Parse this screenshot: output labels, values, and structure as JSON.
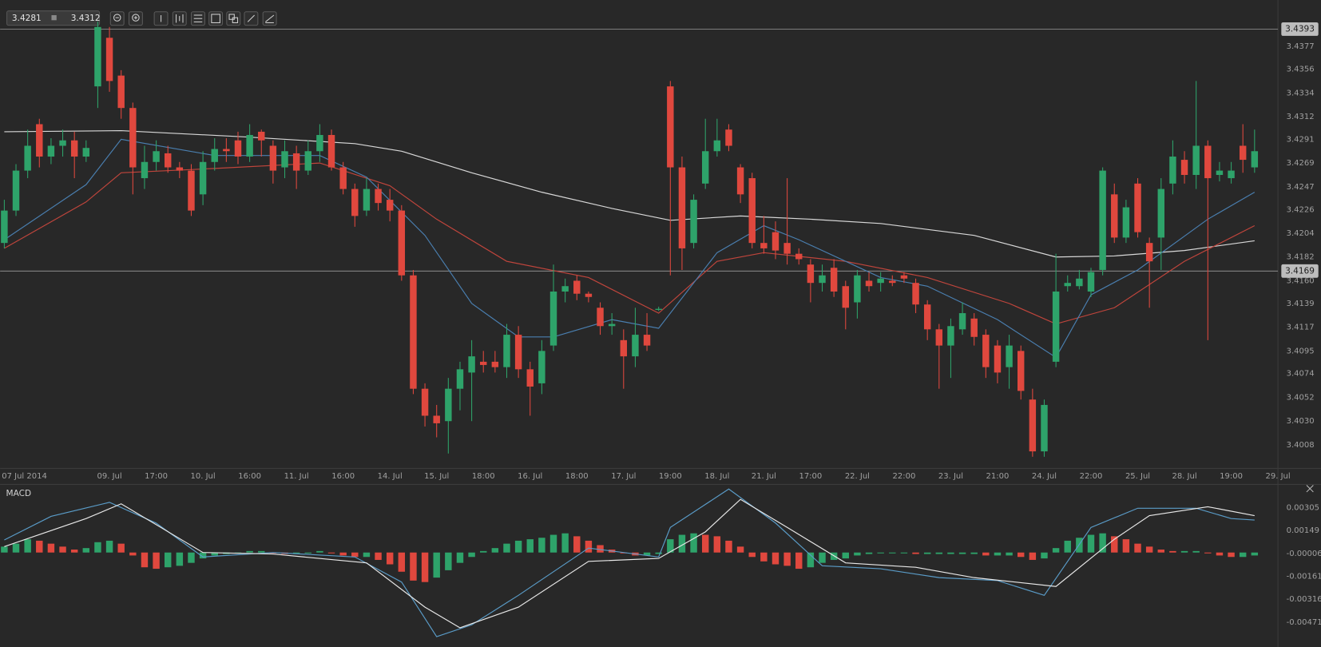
{
  "toolbar": {
    "bid": "3.4281",
    "ask": "3.4312"
  },
  "chart_data": [
    {
      "type": "candlestick",
      "xlim": [
        -0.36,
        109
      ],
      "xticks": [
        {
          "value": 0,
          "label": "07 Jul 2014"
        },
        {
          "value": 9,
          "label": "09. Jul"
        },
        {
          "value": 13,
          "label": "17:00"
        },
        {
          "value": 17,
          "label": "10. Jul"
        },
        {
          "value": 21,
          "label": "16:00"
        },
        {
          "value": 25,
          "label": "11. Jul"
        },
        {
          "value": 29,
          "label": "16:00"
        },
        {
          "value": 33,
          "label": "14. Jul"
        },
        {
          "value": 37,
          "label": "15. Jul"
        },
        {
          "value": 41,
          "label": "18:00"
        },
        {
          "value": 45,
          "label": "16. Jul"
        },
        {
          "value": 49,
          "label": "18:00"
        },
        {
          "value": 53,
          "label": "17. Jul"
        },
        {
          "value": 57,
          "label": "19:00"
        },
        {
          "value": 61,
          "label": "18. Jul"
        },
        {
          "value": 65,
          "label": "21. Jul"
        },
        {
          "value": 69,
          "label": "17:00"
        },
        {
          "value": 73,
          "label": "22. Jul"
        },
        {
          "value": 77,
          "label": "22:00"
        },
        {
          "value": 81,
          "label": "23. Jul"
        },
        {
          "value": 85,
          "label": "21:00"
        },
        {
          "value": 89,
          "label": "24. Jul"
        },
        {
          "value": 93,
          "label": "22:00"
        },
        {
          "value": 97,
          "label": "25. Jul"
        },
        {
          "value": 101,
          "label": "28. Jul"
        },
        {
          "value": 105,
          "label": "19:00"
        },
        {
          "value": 109,
          "label": "29. Jul"
        }
      ],
      "ylim": [
        3.3987,
        3.442
      ],
      "yticks": [
        3.4008,
        {
          "value": 3.403,
          "label": "3.4030"
        },
        3.4052,
        3.4074,
        3.4095,
        3.4117,
        3.4139,
        {
          "value": 3.416,
          "label": "3.4160"
        },
        3.4182,
        3.4204,
        3.4226,
        3.4247,
        3.4269,
        3.4291,
        3.4312,
        3.4334,
        3.4356,
        3.4377
      ],
      "price_lines": [
        3.4393,
        3.4169
      ],
      "up_color": "#2ea36a",
      "down_color": "#e0483e",
      "open": [
        3.4195,
        3.4225,
        3.4262,
        3.4305,
        3.4275,
        3.4285,
        3.429,
        3.4275,
        3.434,
        3.4385,
        3.435,
        3.432,
        3.4255,
        3.427,
        3.4278,
        3.4265,
        3.4262,
        3.424,
        3.427,
        3.4282,
        3.429,
        3.4275,
        3.4298,
        3.4285,
        3.4265,
        3.4278,
        3.4262,
        3.428,
        3.4295,
        3.4265,
        3.4245,
        3.4225,
        3.4245,
        3.4235,
        3.4225,
        3.4165,
        3.406,
        3.4035,
        3.403,
        3.406,
        3.4075,
        3.4085,
        3.4085,
        3.408,
        3.411,
        3.4078,
        3.4065,
        3.41,
        3.415,
        3.416,
        3.4148,
        3.4135,
        3.4118,
        3.4105,
        3.409,
        3.411,
        3.4133,
        3.434,
        3.4265,
        3.4195,
        3.425,
        3.428,
        3.43,
        3.4265,
        3.4255,
        3.4195,
        3.4205,
        3.4195,
        3.4185,
        3.4175,
        3.4158,
        3.4172,
        3.4155,
        3.414,
        3.416,
        3.4158,
        3.416,
        3.4165,
        3.4158,
        3.4138,
        3.4115,
        3.41,
        3.4115,
        3.4125,
        3.411,
        3.41,
        3.408,
        3.4095,
        3.405,
        3.4002,
        3.4085,
        3.4155,
        3.4155,
        3.415,
        3.417,
        3.424,
        3.42,
        3.425,
        3.4195,
        3.42,
        3.425,
        3.4272,
        3.4258,
        3.4285,
        3.4258,
        3.4255,
        3.4285,
        3.4265
      ],
      "high": [
        3.4235,
        3.4268,
        3.43,
        3.431,
        3.4292,
        3.43,
        3.4298,
        3.429,
        3.44,
        3.4395,
        3.4355,
        3.4325,
        3.4285,
        3.429,
        3.4285,
        3.427,
        3.4268,
        3.428,
        3.4292,
        3.4292,
        3.4298,
        3.4305,
        3.43,
        3.429,
        3.429,
        3.4285,
        3.429,
        3.4305,
        3.43,
        3.427,
        3.425,
        3.4255,
        3.425,
        3.4245,
        3.423,
        3.417,
        3.4065,
        3.4045,
        3.407,
        3.4085,
        3.4105,
        3.4095,
        3.4095,
        3.412,
        3.4118,
        3.4085,
        3.4105,
        3.4175,
        3.4162,
        3.4165,
        3.415,
        3.414,
        3.413,
        3.4115,
        3.4135,
        3.413,
        3.4136,
        3.4345,
        3.4275,
        3.424,
        3.431,
        3.431,
        3.4305,
        3.4268,
        3.426,
        3.422,
        3.4215,
        3.4255,
        3.419,
        3.418,
        3.4175,
        3.418,
        3.416,
        3.417,
        3.4168,
        3.4168,
        3.4165,
        3.4168,
        3.4162,
        3.4142,
        3.412,
        3.4125,
        3.414,
        3.413,
        3.4115,
        3.4105,
        3.411,
        3.41,
        3.406,
        3.405,
        3.4185,
        3.4165,
        3.417,
        3.4172,
        3.4265,
        3.425,
        3.4235,
        3.4255,
        3.42,
        3.4255,
        3.429,
        3.428,
        3.4345,
        3.429,
        3.427,
        3.427,
        3.4305,
        3.43
      ],
      "low": [
        3.419,
        3.422,
        3.4255,
        3.4265,
        3.4268,
        3.4275,
        3.4255,
        3.427,
        3.432,
        3.4335,
        3.431,
        3.424,
        3.4245,
        3.4262,
        3.426,
        3.4255,
        3.422,
        3.423,
        3.4262,
        3.427,
        3.4268,
        3.427,
        3.4275,
        3.425,
        3.4255,
        3.4245,
        3.4258,
        3.427,
        3.4262,
        3.424,
        3.421,
        3.422,
        3.4225,
        3.4215,
        3.416,
        3.4055,
        3.4025,
        3.4015,
        3.4,
        3.404,
        3.403,
        3.4075,
        3.4075,
        3.407,
        3.407,
        3.4035,
        3.4055,
        3.4095,
        3.414,
        3.4142,
        3.414,
        3.411,
        3.411,
        3.406,
        3.408,
        3.4095,
        3.4132,
        3.4165,
        3.417,
        3.419,
        3.4245,
        3.4275,
        3.428,
        3.4232,
        3.419,
        3.4185,
        3.418,
        3.4175,
        3.4175,
        3.414,
        3.415,
        3.4145,
        3.4115,
        3.4125,
        3.415,
        3.415,
        3.4155,
        3.4158,
        3.413,
        3.4105,
        3.406,
        3.407,
        3.411,
        3.41,
        3.407,
        3.4065,
        3.406,
        3.405,
        3.3997,
        3.3997,
        3.408,
        3.415,
        3.4152,
        3.4145,
        3.4165,
        3.4195,
        3.4195,
        3.42,
        3.4135,
        3.417,
        3.424,
        3.425,
        3.4245,
        3.4105,
        3.4252,
        3.425,
        3.426,
        3.426
      ],
      "close": [
        3.4225,
        3.4262,
        3.4285,
        3.4275,
        3.4285,
        3.429,
        3.4275,
        3.4283,
        3.4395,
        3.4345,
        3.432,
        3.4265,
        3.427,
        3.428,
        3.4265,
        3.4262,
        3.4225,
        3.427,
        3.4282,
        3.428,
        3.4275,
        3.4295,
        3.429,
        3.4262,
        3.428,
        3.4262,
        3.428,
        3.4295,
        3.4265,
        3.4245,
        3.422,
        3.4245,
        3.4232,
        3.4225,
        3.4165,
        3.406,
        3.4035,
        3.4028,
        3.406,
        3.4078,
        3.409,
        3.4082,
        3.408,
        3.411,
        3.4078,
        3.4062,
        3.4095,
        3.415,
        3.4155,
        3.4148,
        3.4145,
        3.4118,
        3.412,
        3.409,
        3.411,
        3.41,
        3.4134,
        3.4265,
        3.419,
        3.4235,
        3.428,
        3.429,
        3.4285,
        3.424,
        3.4195,
        3.419,
        3.4188,
        3.4185,
        3.418,
        3.4158,
        3.4165,
        3.415,
        3.4135,
        3.4165,
        3.4155,
        3.4162,
        3.4158,
        3.4162,
        3.4138,
        3.4115,
        3.41,
        3.4118,
        3.413,
        3.4108,
        3.408,
        3.4075,
        3.41,
        3.4058,
        3.4002,
        3.4045,
        3.415,
        3.4158,
        3.4162,
        3.4168,
        3.4262,
        3.42,
        3.4228,
        3.4205,
        3.4178,
        3.4245,
        3.4275,
        3.4258,
        3.4285,
        3.4255,
        3.4262,
        3.4262,
        3.4272,
        3.428
      ],
      "lines": [
        {
          "color": "#d8d8d8",
          "x": [
            0,
            10,
            21,
            30,
            34,
            40,
            46,
            52,
            57,
            63,
            69,
            75,
            83,
            90,
            95,
            101,
            107
          ],
          "values": [
            3.4298,
            3.4299,
            3.4293,
            3.4287,
            3.428,
            3.426,
            3.4242,
            3.4227,
            3.4216,
            3.422,
            3.4217,
            3.4213,
            3.4202,
            3.4182,
            3.4183,
            3.4188,
            3.4197
          ]
        },
        {
          "color": "#c0453c",
          "x": [
            0,
            7,
            10,
            18,
            27,
            33,
            37,
            43,
            50,
            56,
            61,
            65,
            72,
            79,
            86,
            90,
            95,
            101,
            107
          ],
          "values": [
            3.419,
            3.4233,
            3.426,
            3.4264,
            3.4269,
            3.4248,
            3.4217,
            3.4178,
            3.4163,
            3.413,
            3.4178,
            3.4186,
            3.4178,
            3.4163,
            3.4139,
            3.412,
            3.4135,
            3.4178,
            3.4211
          ]
        },
        {
          "color": "#4a7fb0",
          "x": [
            0,
            7,
            10,
            18,
            27,
            31,
            36,
            40,
            44,
            47,
            52,
            56,
            61,
            65,
            68,
            75,
            79,
            85,
            90,
            93,
            97,
            103,
            107
          ],
          "values": [
            3.4198,
            3.4249,
            3.4291,
            3.4276,
            3.4276,
            3.4256,
            3.4202,
            3.4139,
            3.4108,
            3.4108,
            3.4124,
            3.4116,
            3.4186,
            3.4211,
            3.4198,
            3.4163,
            3.4155,
            3.4124,
            3.4089,
            3.4147,
            3.417,
            3.4217,
            3.4242
          ]
        }
      ]
    },
    {
      "type": "macd",
      "title": "MACD",
      "xlim": [
        -0.36,
        109
      ],
      "ylim": [
        -0.0064,
        0.0045
      ],
      "yticks": [
        0.00305,
        0.00149,
        -6e-05,
        -0.00161,
        -0.00316,
        -0.00471
      ],
      "up_color": "#2ea36a",
      "down_color": "#e0483e",
      "histogram": [
        0.0004,
        0.0006,
        0.0009,
        0.0008,
        0.0006,
        0.0004,
        0.0002,
        0.0003,
        0.0007,
        0.0008,
        0.0006,
        -0.0002,
        -0.001,
        -0.0011,
        -0.001,
        -0.0009,
        -0.0007,
        -0.0004,
        -0.0002,
        -0.0001,
        0.0,
        0.0001,
        0.0001,
        0.0,
        -0.0001,
        0.0,
        0.0,
        0.0001,
        0.0,
        -0.0002,
        -0.0003,
        -0.0003,
        -0.0005,
        -0.0008,
        -0.0013,
        -0.0019,
        -0.002,
        -0.0017,
        -0.0012,
        -0.0007,
        -0.0003,
        0.0001,
        0.0003,
        0.0006,
        0.0008,
        0.0009,
        0.001,
        0.0012,
        0.0013,
        0.0011,
        0.0008,
        0.0005,
        0.0002,
        0.0,
        -0.0002,
        -0.0002,
        -0.0001,
        0.0009,
        0.0012,
        0.0013,
        0.0012,
        0.0011,
        0.0008,
        0.0004,
        -0.0003,
        -0.0006,
        -0.0008,
        -0.0009,
        -0.0011,
        -0.001,
        -0.0007,
        -0.0005,
        -0.0004,
        -0.0002,
        -0.0001,
        0.0,
        0.0,
        0.0,
        -0.0001,
        -0.0001,
        -0.0001,
        -0.0001,
        -0.0001,
        -0.0001,
        -0.0002,
        -0.0002,
        -0.0002,
        -0.0003,
        -0.0005,
        -0.0004,
        0.0003,
        0.0008,
        0.001,
        0.0012,
        0.0013,
        0.0011,
        0.0009,
        0.0006,
        0.0004,
        0.0002,
        0.0001,
        0.0001,
        0.0001,
        0.0,
        -0.0002,
        -0.0003,
        -0.0003,
        -0.0002
      ],
      "lines": [
        {
          "color": "#5a9cc8",
          "x": [
            0,
            4,
            9,
            13,
            17,
            23,
            30,
            34,
            37,
            40,
            44,
            50,
            56,
            57,
            62,
            66,
            70,
            75,
            80,
            85,
            89,
            93,
            97,
            102,
            105,
            107
          ],
          "values": [
            0.00085,
            0.00245,
            0.0034,
            0.00199,
            -0.0003,
            0.0,
            -0.0003,
            -0.002,
            -0.0057,
            -0.0049,
            -0.0029,
            0.0003,
            -0.0003,
            0.0017,
            0.0043,
            0.002,
            -0.0009,
            -0.0011,
            -0.0017,
            -0.0019,
            -0.0029,
            0.0017,
            0.003,
            0.003,
            0.0023,
            0.0022
          ]
        },
        {
          "color": "#e8e8e8",
          "x": [
            0,
            7,
            10,
            17,
            23,
            31,
            36,
            39,
            44,
            50,
            56,
            60,
            63,
            67,
            72,
            78,
            83,
            90,
            95,
            98,
            103,
            107
          ],
          "values": [
            0.0004,
            0.0023,
            0.0033,
            0.0,
            -0.0001,
            -0.0007,
            -0.0037,
            -0.0051,
            -0.0037,
            -0.0006,
            -0.0004,
            0.0014,
            0.0036,
            0.0017,
            -0.0007,
            -0.001,
            -0.0017,
            -0.0023,
            0.0009,
            0.0025,
            0.0031,
            0.0025
          ]
        }
      ]
    }
  ]
}
